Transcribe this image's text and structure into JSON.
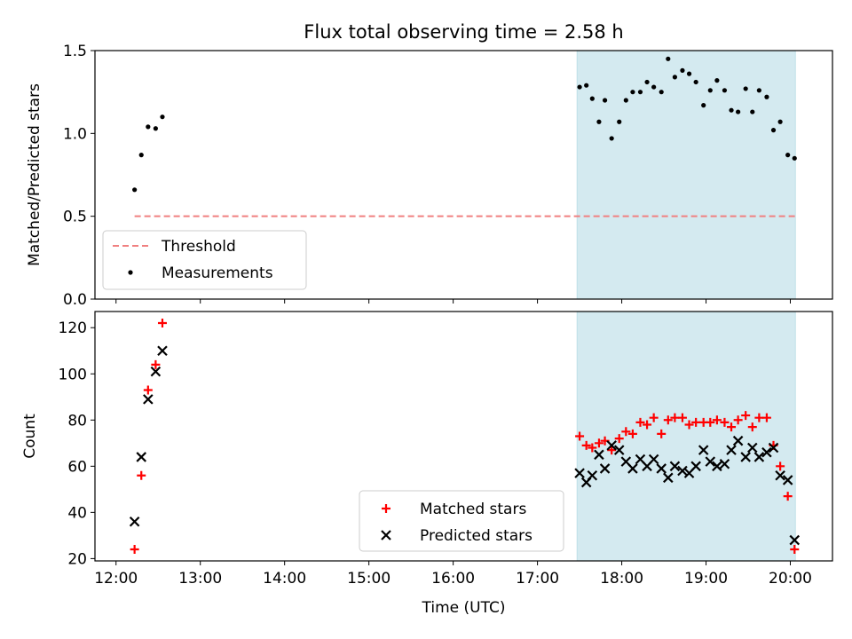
{
  "chart_data": [
    {
      "type": "scatter",
      "title": "Flux total observing time = 2.58 h",
      "ylabel": "Matched/Predicted stars",
      "xlim": [
        11.75,
        20.5
      ],
      "ylim": [
        0,
        1.5
      ],
      "yticks": [
        0.0,
        0.5,
        1.0,
        1.5
      ],
      "ytick_labels": [
        "0.0",
        "0.5",
        "1.0",
        "1.5"
      ],
      "shaded_interval": [
        17.47,
        20.06
      ],
      "shade_color": "#d4eaf0",
      "threshold": {
        "name": "Threshold",
        "y": 0.5,
        "x_range": [
          12.22,
          20.06
        ],
        "color": "#f08080"
      },
      "legend": {
        "placement": "lower-left",
        "entries": [
          "Threshold",
          "Measurements"
        ]
      },
      "series": [
        {
          "name": "Measurements",
          "marker": "dot",
          "color": "#000000",
          "x": [
            12.22,
            12.3,
            12.38,
            12.47,
            12.55,
            17.5,
            17.58,
            17.65,
            17.73,
            17.8,
            17.88,
            17.97,
            18.05,
            18.13,
            18.22,
            18.3,
            18.38,
            18.47,
            18.55,
            18.63,
            18.72,
            18.8,
            18.88,
            18.97,
            19.05,
            19.13,
            19.22,
            19.3,
            19.38,
            19.47,
            19.55,
            19.63,
            19.72,
            19.8,
            19.88,
            19.97,
            20.05
          ],
          "y": [
            0.66,
            0.87,
            1.04,
            1.03,
            1.1,
            1.28,
            1.29,
            1.21,
            1.07,
            1.2,
            0.97,
            1.07,
            1.2,
            1.25,
            1.25,
            1.31,
            1.28,
            1.25,
            1.45,
            1.34,
            1.38,
            1.36,
            1.31,
            1.17,
            1.26,
            1.32,
            1.26,
            1.14,
            1.13,
            1.27,
            1.13,
            1.26,
            1.22,
            1.02,
            1.07,
            0.87,
            0.85
          ]
        }
      ]
    },
    {
      "type": "scatter",
      "xlabel": "Time (UTC)",
      "ylabel": "Count",
      "xlim": [
        11.75,
        20.5
      ],
      "ylim": [
        19,
        127
      ],
      "xticks": [
        12,
        13,
        14,
        15,
        16,
        17,
        18,
        19,
        20
      ],
      "xtick_labels": [
        "12:00",
        "13:00",
        "14:00",
        "15:00",
        "16:00",
        "17:00",
        "18:00",
        "19:00",
        "20:00"
      ],
      "yticks": [
        20,
        40,
        60,
        80,
        100,
        120
      ],
      "ytick_labels": [
        "20",
        "40",
        "60",
        "80",
        "100",
        "120"
      ],
      "shaded_interval": [
        17.47,
        20.06
      ],
      "shade_color": "#d4eaf0",
      "legend": {
        "placement": "lower-center",
        "entries": [
          "Matched stars",
          "Predicted stars"
        ]
      },
      "series": [
        {
          "name": "Matched stars",
          "marker": "plus",
          "color": "#ff0000",
          "x": [
            12.22,
            12.3,
            12.38,
            12.47,
            12.55,
            17.5,
            17.58,
            17.65,
            17.73,
            17.8,
            17.88,
            17.97,
            18.05,
            18.13,
            18.22,
            18.3,
            18.38,
            18.47,
            18.55,
            18.63,
            18.72,
            18.8,
            18.88,
            18.97,
            19.05,
            19.13,
            19.22,
            19.3,
            19.38,
            19.47,
            19.55,
            19.63,
            19.72,
            19.8,
            19.88,
            19.97,
            20.05
          ],
          "y": [
            24,
            56,
            93,
            104,
            122,
            73,
            69,
            68,
            70,
            71,
            67,
            72,
            75,
            74,
            79,
            78,
            81,
            74,
            80,
            81,
            81,
            78,
            79,
            79,
            79,
            80,
            79,
            77,
            80,
            82,
            77,
            81,
            81,
            69,
            60,
            47,
            24
          ]
        },
        {
          "name": "Predicted stars",
          "marker": "x",
          "color": "#000000",
          "x": [
            12.22,
            12.3,
            12.38,
            12.47,
            12.55,
            17.5,
            17.58,
            17.65,
            17.73,
            17.8,
            17.88,
            17.97,
            18.05,
            18.13,
            18.22,
            18.3,
            18.38,
            18.47,
            18.55,
            18.63,
            18.72,
            18.8,
            18.88,
            18.97,
            19.05,
            19.13,
            19.22,
            19.3,
            19.38,
            19.47,
            19.55,
            19.63,
            19.72,
            19.8,
            19.88,
            19.97,
            20.05
          ],
          "y": [
            36,
            64,
            89,
            101,
            110,
            57,
            53,
            56,
            65,
            59,
            69,
            67,
            62,
            59,
            63,
            60,
            63,
            59,
            55,
            60,
            58,
            57,
            60,
            67,
            62,
            60,
            61,
            67,
            71,
            64,
            68,
            64,
            66,
            68,
            56,
            54,
            28
          ]
        }
      ]
    }
  ]
}
